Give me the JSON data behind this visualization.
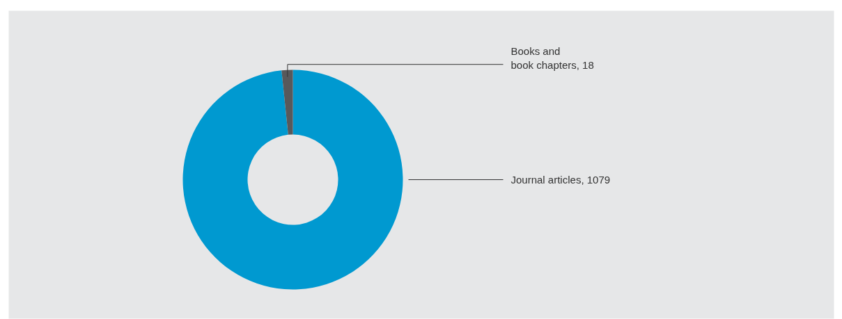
{
  "chart_data": {
    "type": "donut",
    "categories": [
      "Journal articles, 1079",
      "Books and\nbook chapters, 18"
    ],
    "values": [
      1079,
      18
    ],
    "colors": [
      "#0099d0",
      "#58595b"
    ]
  }
}
